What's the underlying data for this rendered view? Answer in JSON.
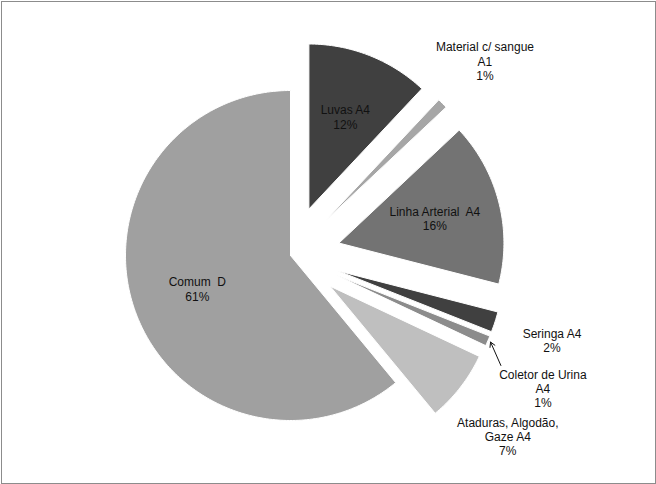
{
  "chart_data": {
    "type": "pie",
    "categories": [
      "Luvas A4",
      "Material c/ sangue\nA1",
      "Linha Arterial  A4",
      "Seringa A4",
      "Coletor de Urina\nA4",
      "Ataduras, Algodão,\nGaze A4",
      "Comum  D"
    ],
    "values": [
      12,
      1,
      16,
      2,
      1,
      7,
      61
    ],
    "value_labels": [
      "12%",
      "1%",
      "16%",
      "2%",
      "1%",
      "7%",
      "61%"
    ],
    "colors": [
      "#404040",
      "#a6a6a6",
      "#737373",
      "#404040",
      "#8c8c8c",
      "#bfbfbf",
      "#a0a0a0"
    ],
    "data_labels": true
  }
}
